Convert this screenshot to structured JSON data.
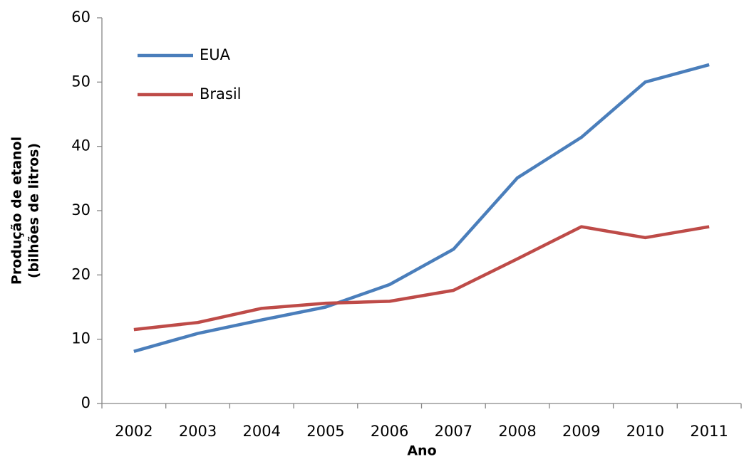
{
  "chart_data": {
    "type": "line",
    "y_label": [
      "Produção de etanol",
      "(bilhões de litros)"
    ],
    "x_label": "Ano",
    "categories": [
      "2002",
      "2003",
      "2004",
      "2005",
      "2006",
      "2007",
      "2008",
      "2009",
      "2010",
      "2011"
    ],
    "series": [
      {
        "name": "EUA",
        "color": "#4a7ebb",
        "values": [
          8.1,
          10.9,
          13.0,
          15.0,
          18.5,
          24.0,
          35.1,
          41.4,
          50.0,
          52.7
        ]
      },
      {
        "name": "Brasil",
        "color": "#be4b48",
        "values": [
          11.5,
          12.6,
          14.8,
          15.6,
          15.9,
          17.6,
          22.5,
          27.5,
          25.8,
          27.5
        ]
      }
    ],
    "ylim": [
      0,
      60
    ],
    "yticks": [
      0,
      10,
      20,
      30,
      40,
      50,
      60
    ],
    "grid": false,
    "legend": "top-left"
  }
}
